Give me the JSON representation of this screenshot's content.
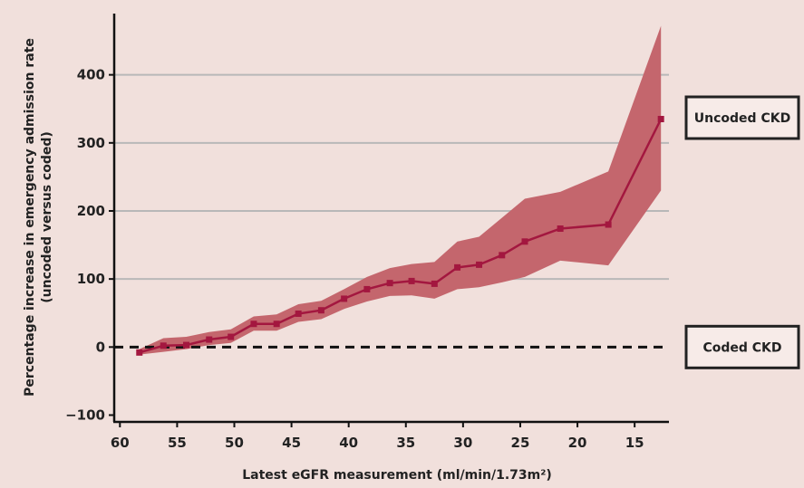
{
  "chart_data": {
    "type": "line",
    "xlabel": "Latest eGFR measurement (ml/min/1.73m²)",
    "ylabel_line1": "Percentage increase in emergency admission rate",
    "ylabel_line2": "(uncoded versus coded)",
    "x_reversed": true,
    "xlim": [
      12,
      60.5
    ],
    "ylim": [
      -110,
      490
    ],
    "xticks": [
      60,
      55,
      50,
      45,
      40,
      35,
      30,
      25,
      20,
      15
    ],
    "yticks": [
      -100,
      0,
      100,
      200,
      300,
      400
    ],
    "grid": "horizontal lines at 100, 200, 300, 400",
    "reference_line": {
      "y": 0,
      "style": "dashed"
    },
    "series": [
      {
        "x": [
          58.3,
          56.2,
          54.2,
          52.2,
          50.3,
          48.3,
          46.3,
          44.4,
          42.4,
          40.4,
          38.4,
          36.4,
          34.5,
          32.5,
          30.5,
          28.6,
          26.6,
          24.6,
          21.5,
          17.3,
          12.7
        ],
        "y": [
          -8,
          2,
          3,
          11,
          15,
          34,
          34,
          49,
          54,
          71,
          85,
          94,
          97,
          93,
          117,
          121,
          135,
          155,
          174,
          180,
          335
        ],
        "ci_upper": [
          -3,
          13,
          15,
          22,
          26,
          45,
          48,
          63,
          68,
          85,
          103,
          116,
          122,
          125,
          155,
          162,
          190,
          218,
          228,
          258,
          472
        ],
        "ci_lower": [
          -11,
          -7,
          -3,
          3,
          6,
          24,
          24,
          37,
          41,
          56,
          67,
          75,
          76,
          71,
          85,
          88,
          95,
          103,
          127,
          120,
          230
        ],
        "line_color": "#a3173f",
        "band_color": "#c4666d"
      }
    ],
    "annotations": [
      {
        "text": "Uncoded CKD",
        "y": 337
      },
      {
        "text": "Coded CKD",
        "y": 0
      }
    ]
  },
  "colors": {
    "background": "#f1e0dc",
    "gridline": "#b8b8b8",
    "axis": "#111111"
  }
}
